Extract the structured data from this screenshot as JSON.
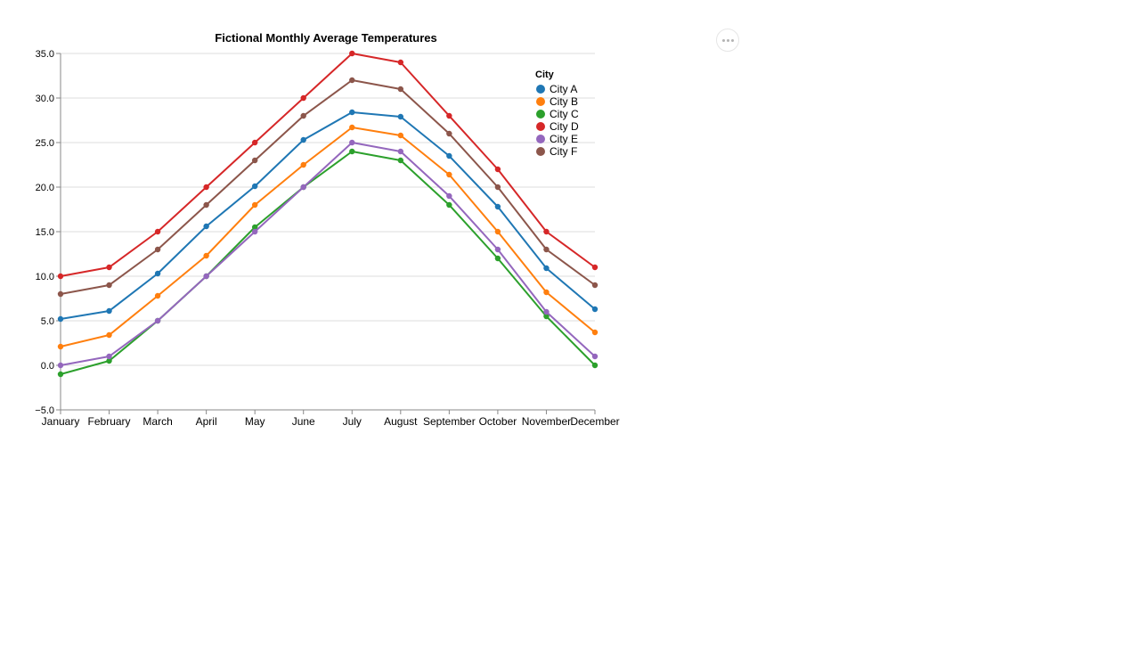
{
  "actions_menu": {
    "icon": "more-horizontal-icon"
  },
  "chart_data": {
    "type": "line",
    "title": "Fictional Monthly Average Temperatures",
    "xlabel": "",
    "ylabel": "",
    "ylim": [
      -5,
      35
    ],
    "y_ticks": [
      -5,
      0,
      5,
      10,
      15,
      20,
      25,
      30,
      35
    ],
    "y_tick_labels": [
      "−5.0",
      "0.0",
      "5.0",
      "10.0",
      "15.0",
      "20.0",
      "25.0",
      "30.0",
      "35.0"
    ],
    "grid": true,
    "legend_title": "City",
    "legend_position": "top-right",
    "categories": [
      "January",
      "February",
      "March",
      "April",
      "May",
      "June",
      "July",
      "August",
      "September",
      "October",
      "November",
      "December"
    ],
    "series": [
      {
        "name": "City A",
        "color": "#1f77b4",
        "values": [
          5.2,
          6.1,
          10.3,
          15.6,
          20.1,
          25.3,
          28.4,
          27.9,
          23.5,
          17.8,
          10.9,
          6.3
        ]
      },
      {
        "name": "City B",
        "color": "#ff7f0e",
        "values": [
          2.1,
          3.4,
          7.8,
          12.3,
          18.0,
          22.5,
          26.7,
          25.8,
          21.4,
          15.0,
          8.2,
          3.7
        ]
      },
      {
        "name": "City C",
        "color": "#2ca02c",
        "values": [
          -1.0,
          0.5,
          5.0,
          10.0,
          15.5,
          20.0,
          24.0,
          23.0,
          18.0,
          12.0,
          5.5,
          0.0
        ]
      },
      {
        "name": "City D",
        "color": "#d62728",
        "values": [
          10.0,
          11.0,
          15.0,
          20.0,
          25.0,
          30.0,
          35.0,
          34.0,
          28.0,
          22.0,
          15.0,
          11.0
        ]
      },
      {
        "name": "City E",
        "color": "#9467bd",
        "values": [
          0.0,
          1.0,
          5.0,
          10.0,
          15.0,
          20.0,
          25.0,
          24.0,
          19.0,
          13.0,
          6.0,
          1.0
        ]
      },
      {
        "name": "City F",
        "color": "#8c564b",
        "values": [
          8.0,
          9.0,
          13.0,
          18.0,
          23.0,
          28.0,
          32.0,
          31.0,
          26.0,
          20.0,
          13.0,
          9.0
        ]
      }
    ]
  }
}
